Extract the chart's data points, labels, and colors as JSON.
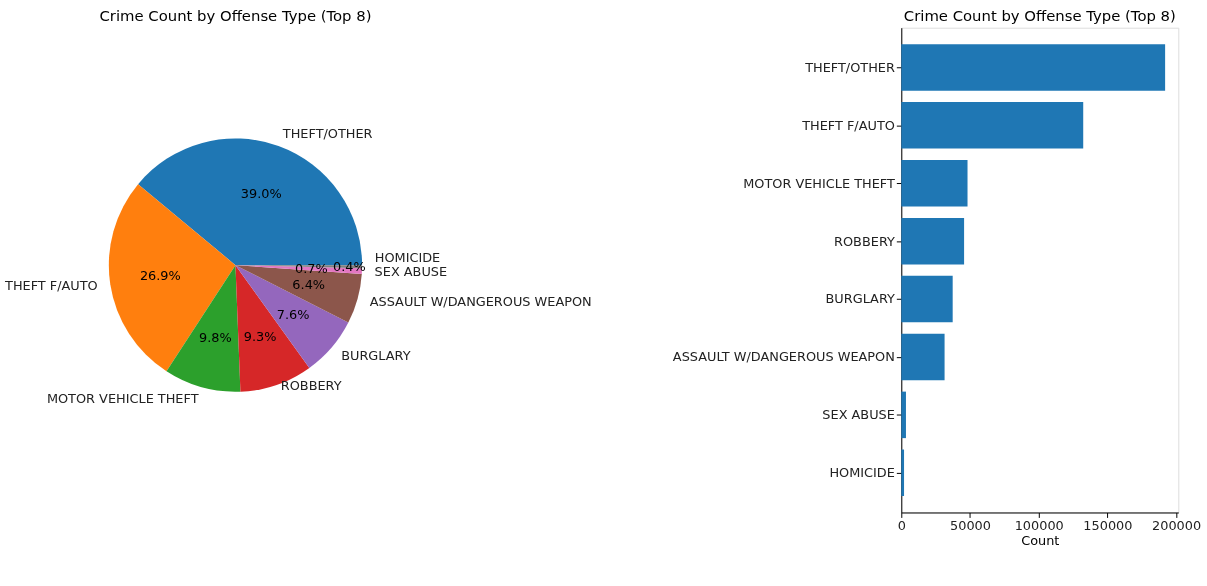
{
  "chart_data": [
    {
      "type": "pie",
      "title": "Crime Count by Offense Type (Top 8)",
      "categories": [
        "THEFT/OTHER",
        "THEFT F/AUTO",
        "MOTOR VEHICLE THEFT",
        "ROBBERY",
        "BURGLARY",
        "ASSAULT W/DANGEROUS WEAPON",
        "SEX ABUSE",
        "HOMICIDE"
      ],
      "values": [
        39.0,
        26.9,
        9.8,
        9.3,
        7.6,
        6.4,
        0.7,
        0.4
      ],
      "colors": [
        "#1f77b4",
        "#ff7f0e",
        "#2ca02c",
        "#d62728",
        "#9467bd",
        "#8c564b",
        "#e377c2",
        "#7f7f7f"
      ],
      "value_labels": [
        "39.0%",
        "26.9%",
        "9.8%",
        "9.3%",
        "7.6%",
        "6.4%",
        "0.7%",
        "0.4%"
      ]
    },
    {
      "type": "bar",
      "orientation": "horizontal",
      "title": "Crime Count by Offense Type (Top 8)",
      "xlabel": "Count",
      "categories": [
        "THEFT/OTHER",
        "THEFT F/AUTO",
        "MOTOR VEHICLE THEFT",
        "ROBBERY",
        "BURGLARY",
        "ASSAULT W/DANGEROUS WEAPON",
        "SEX ABUSE",
        "HOMICIDE"
      ],
      "values": [
        192000,
        132400,
        48200,
        45700,
        37400,
        31500,
        3400,
        2000
      ],
      "color": "#1f77b4",
      "xlim": [
        0,
        201600
      ],
      "xticks": [
        0,
        50000,
        100000,
        150000,
        200000
      ],
      "grid": false
    }
  ]
}
